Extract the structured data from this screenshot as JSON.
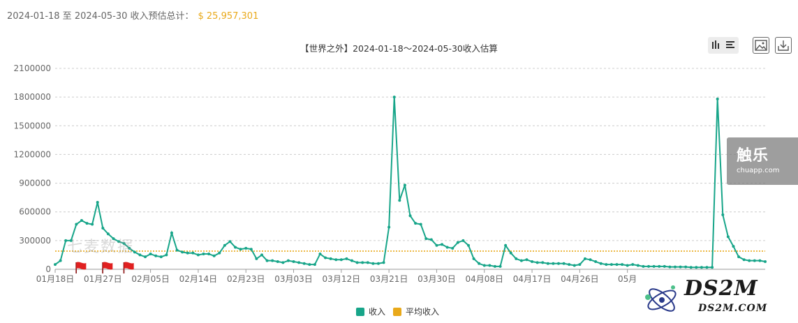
{
  "summary": {
    "range_text": "2024-01-18 至 2024-05-30 收入预估总计：",
    "total": "$ 25,957,301"
  },
  "toolbar": {
    "bar_icon": "bar-chart-icon",
    "list_icon": "list-icon",
    "image_icon": "save-image-icon",
    "download_icon": "download-icon"
  },
  "watermarks": {
    "brand_cn": "触乐",
    "brand_url": "chuapp.com",
    "qimai": "七麦数据",
    "ds2m_big": "DS2M",
    "ds2m_small": "DS2M.COM"
  },
  "colors": {
    "series": "#17a589",
    "average": "#e9a91a",
    "grid": "#cccccc",
    "flag": "#e02020"
  },
  "chart_data": {
    "type": "line",
    "title": "【世界之外】2024-01-18～2024-05-30收入估算",
    "ylim": [
      0,
      2100000
    ],
    "yticks": [
      "2100000",
      "1800000",
      "1500000",
      "1200000",
      "900000",
      "600000",
      "300000",
      "0"
    ],
    "ytick_values": [
      2100000,
      1800000,
      1500000,
      1200000,
      900000,
      600000,
      300000,
      0
    ],
    "xticks": [
      {
        "label": "01月18日",
        "index": 0
      },
      {
        "label": "01月27日",
        "index": 9
      },
      {
        "label": "02月05日",
        "index": 18
      },
      {
        "label": "02月14日",
        "index": 27
      },
      {
        "label": "02月23日",
        "index": 36
      },
      {
        "label": "03月03日",
        "index": 45
      },
      {
        "label": "03月12日",
        "index": 54
      },
      {
        "label": "03月21日",
        "index": 63
      },
      {
        "label": "03月30日",
        "index": 72
      },
      {
        "label": "04月08日",
        "index": 81
      },
      {
        "label": "04月17日",
        "index": 90
      },
      {
        "label": "04月26日",
        "index": 99
      },
      {
        "label": "05月",
        "index": 108
      }
    ],
    "flags_at_index": [
      4,
      9,
      13
    ],
    "series": [
      {
        "name": "收入",
        "values": [
          50000,
          90000,
          300000,
          300000,
          470000,
          510000,
          480000,
          470000,
          700000,
          430000,
          370000,
          320000,
          290000,
          270000,
          220000,
          180000,
          150000,
          130000,
          160000,
          140000,
          130000,
          150000,
          380000,
          200000,
          180000,
          170000,
          170000,
          150000,
          160000,
          160000,
          140000,
          170000,
          250000,
          290000,
          230000,
          210000,
          220000,
          210000,
          110000,
          150000,
          90000,
          90000,
          80000,
          70000,
          90000,
          80000,
          70000,
          60000,
          50000,
          50000,
          160000,
          120000,
          110000,
          100000,
          100000,
          110000,
          90000,
          70000,
          70000,
          70000,
          60000,
          60000,
          70000,
          440000,
          1800000,
          720000,
          880000,
          560000,
          480000,
          470000,
          320000,
          310000,
          250000,
          260000,
          230000,
          220000,
          280000,
          300000,
          250000,
          110000,
          60000,
          40000,
          40000,
          30000,
          30000,
          250000,
          170000,
          110000,
          90000,
          100000,
          80000,
          70000,
          70000,
          60000,
          60000,
          60000,
          60000,
          50000,
          40000,
          50000,
          110000,
          100000,
          80000,
          60000,
          50000,
          50000,
          50000,
          50000,
          40000,
          50000,
          40000,
          30000,
          30000,
          30000,
          30000,
          30000,
          25000,
          25000,
          25000,
          25000,
          20000,
          20000,
          20000,
          20000,
          20000,
          1780000,
          570000,
          340000,
          240000,
          130000,
          100000,
          90000,
          90000,
          90000,
          80000
        ]
      },
      {
        "name": "平均收入",
        "constant": 190000
      }
    ]
  }
}
